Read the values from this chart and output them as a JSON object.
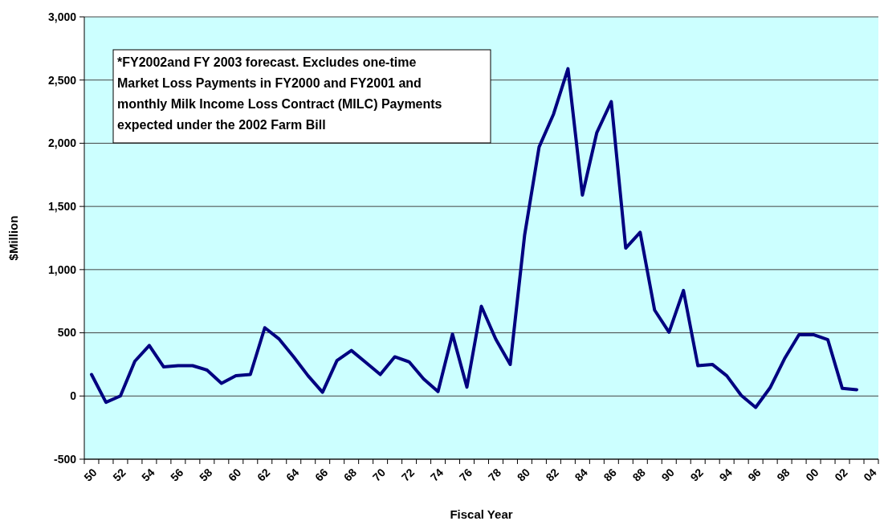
{
  "chart_data": {
    "type": "line",
    "xlabel": "Fiscal Year",
    "ylabel": "$Million",
    "categories": [
      "50",
      null,
      "52",
      null,
      "54",
      null,
      "56",
      null,
      "58",
      null,
      "60",
      null,
      "62",
      null,
      "64",
      null,
      "66",
      null,
      "68",
      null,
      "70",
      null,
      "72",
      null,
      "74",
      null,
      "76",
      null,
      "78",
      null,
      "80",
      null,
      "82",
      null,
      "84",
      null,
      "86",
      null,
      "88",
      null,
      "90",
      null,
      "92",
      null,
      "94",
      null,
      "96",
      null,
      "98",
      null,
      "00",
      null,
      "02",
      null,
      "04"
    ],
    "series": [
      {
        "color": "#000080",
        "values": [
          170,
          -50,
          0,
          275,
          400,
          230,
          240,
          240,
          205,
          100,
          160,
          170,
          540,
          450,
          310,
          160,
          30,
          280,
          360,
          265,
          170,
          310,
          270,
          135,
          35,
          490,
          70,
          710,
          450,
          250,
          1275,
          1970,
          2230,
          2590,
          1590,
          2085,
          2330,
          1170,
          1295,
          680,
          505,
          835,
          240,
          250,
          160,
          5,
          -90,
          65,
          295,
          485,
          485,
          445,
          60,
          50,
          null
        ]
      }
    ],
    "ylim": [
      -500,
      3000
    ],
    "yticks": [
      {
        "value": -500,
        "label": "-500"
      },
      {
        "value": 0,
        "label": "0"
      },
      {
        "value": 500,
        "label": "500"
      },
      {
        "value": 1000,
        "label": "1,000"
      },
      {
        "value": 1500,
        "label": "1,500"
      },
      {
        "value": 2000,
        "label": "2,000"
      },
      {
        "value": 2500,
        "label": "2,500"
      },
      {
        "value": 3000,
        "label": "3,000"
      }
    ],
    "grid": "y",
    "marker": "none",
    "line_style": "solid",
    "annotations": [
      "*FY2002and FY 2003 forecast.  Excludes one-time Market Loss Payments in FY2000 and FY2001 and monthly Milk Income Loss Contract (MILC) Payments expected under the 2002 Farm Bill"
    ]
  }
}
